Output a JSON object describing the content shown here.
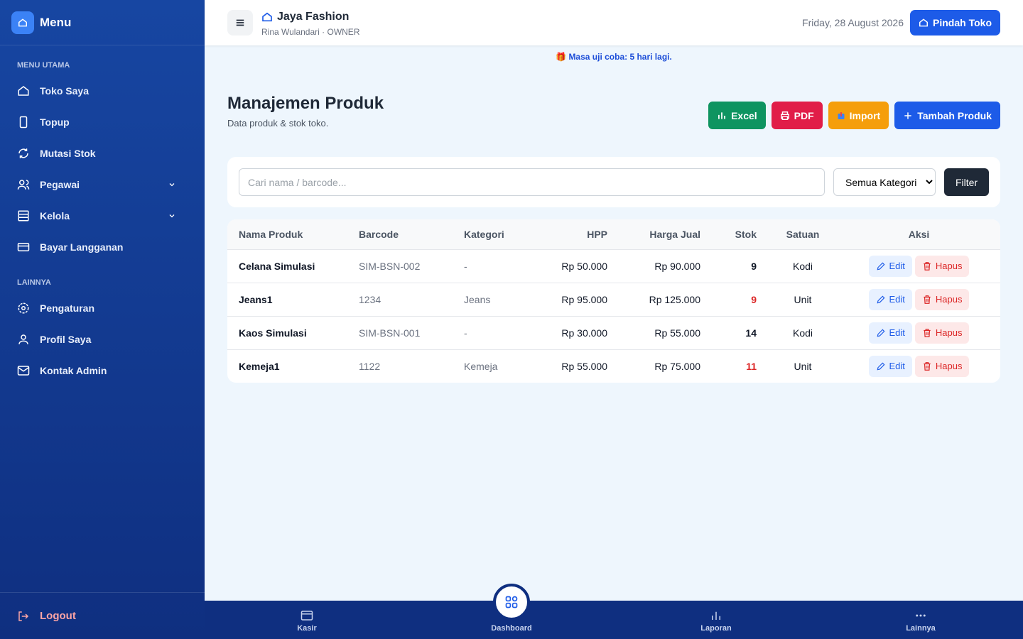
{
  "sidebar": {
    "title": "Menu",
    "sections": [
      {
        "label": "MENU UTAMA",
        "items": [
          "Toko Saya",
          "Topup",
          "Mutasi Stok",
          "Pegawai",
          "Kelola",
          "Bayar Langganan"
        ]
      },
      {
        "label": "LAINNYA",
        "items": [
          "Pengaturan",
          "Profil Saya",
          "Kontak Admin"
        ]
      }
    ],
    "logout": "Logout"
  },
  "header": {
    "store": "Jaya Fashion",
    "user": "Rina Wulandari · OWNER",
    "date": "Friday, 28 August 2026",
    "switch_button": "Pindah Toko"
  },
  "notice": "Masa uji coba: 5 hari lagi.",
  "page": {
    "title": "Manajemen Produk",
    "subtitle": "Data produk & stok toko.",
    "actions": [
      "Excel",
      "PDF",
      "Import",
      "Tambah Produk"
    ]
  },
  "filter": {
    "placeholder": "Cari nama / barcode...",
    "category": "Semua Kategori",
    "button": "Filter"
  },
  "table": {
    "columns": [
      "Nama Produk",
      "Barcode",
      "Kategori",
      "HPP",
      "Harga Jual",
      "Stok",
      "Satuan",
      "Aksi"
    ],
    "rows": [
      [
        "Celana Simulasi",
        "SIM-BSN-002",
        "-",
        "Rp 50.000",
        "Rp 90.000",
        "9",
        "Kodi"
      ],
      [
        "Jeans1",
        "1234",
        "Jeans",
        "Rp 95.000",
        "Rp 125.000",
        "9",
        "Unit"
      ],
      [
        "Kaos Simulasi",
        "SIM-BSN-001",
        "-",
        "Rp 30.000",
        "Rp 55.000",
        "14",
        "Kodi"
      ],
      [
        "Kemeja1",
        "1122",
        "Kemeja",
        "Rp 55.000",
        "Rp 75.000",
        "11",
        "Unit"
      ]
    ],
    "row_actions": [
      "Edit",
      "Hapus"
    ]
  },
  "bottom_nav": [
    "Kasir",
    "Dashboard",
    "Laporan",
    "Lainnya"
  ]
}
